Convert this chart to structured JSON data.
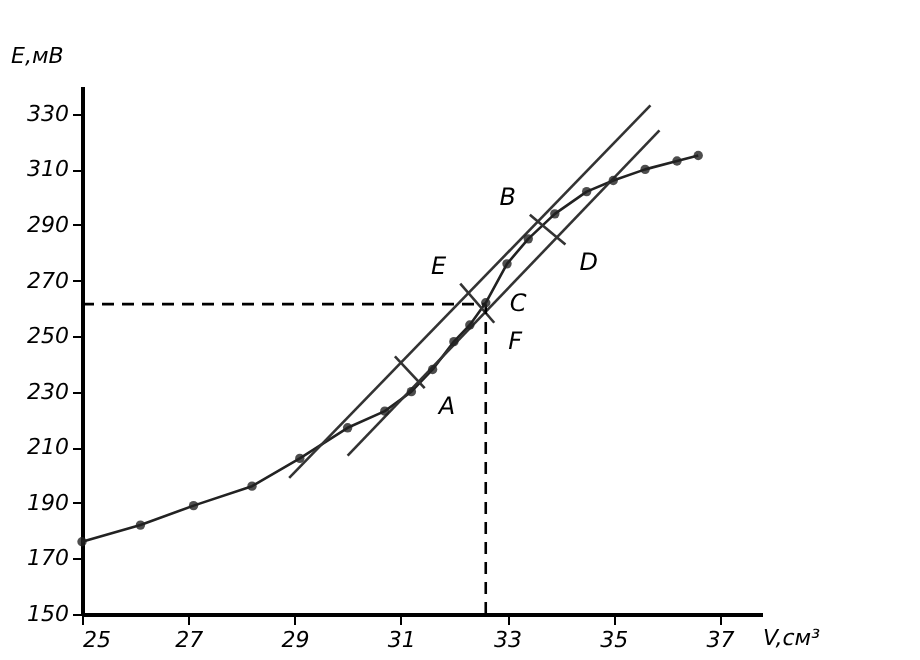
{
  "chart_data": {
    "type": "line",
    "xlabel": "V,см³",
    "ylabel": "E,мВ",
    "xlim": [
      25,
      37.8
    ],
    "ylim": [
      150,
      340
    ],
    "xticks": [
      25,
      27,
      29,
      31,
      33,
      35,
      37
    ],
    "yticks": [
      150,
      170,
      190,
      210,
      230,
      250,
      270,
      290,
      310,
      330
    ],
    "grid": false,
    "series": [
      {
        "color": "#222222",
        "marker": "circle",
        "line_style": "solid",
        "x": [
          25,
          26.1,
          27.1,
          28.2,
          29.1,
          30.0,
          30.7,
          31.2,
          31.6,
          32.0,
          32.3,
          32.6,
          33.0,
          33.4,
          33.9,
          34.5,
          35.0,
          35.6,
          36.2,
          36.6
        ],
        "values": [
          176,
          182,
          189,
          196,
          206,
          217,
          223,
          230,
          238,
          248,
          254,
          262,
          276,
          285,
          294,
          302,
          306,
          310,
          313,
          315
        ]
      },
      {
        "color": "#333333",
        "marker": "none",
        "line_style": "solid",
        "x": [
          28.9,
          35.7
        ],
        "values": [
          199,
          333
        ]
      },
      {
        "color": "#333333",
        "marker": "none",
        "line_style": "solid",
        "x": [
          30.0,
          35.87
        ],
        "values": [
          207,
          324
        ]
      },
      {
        "color": "#333333",
        "marker": "none",
        "line_style": "solid",
        "x": [
          30.89,
          31.45
        ],
        "values": [
          242.7,
          231.3
        ]
      },
      {
        "color": "#333333",
        "marker": "none",
        "line_style": "solid",
        "x": [
          33.43,
          34.1
        ],
        "values": [
          293.7,
          283
        ]
      },
      {
        "color": "#333333",
        "marker": "none",
        "line_style": "solid",
        "x": [
          32.12,
          32.76
        ],
        "values": [
          268.9,
          254.8
        ]
      },
      {
        "color": "#000000",
        "marker": "none",
        "line_style": "dashed",
        "x": [
          25,
          32.6
        ],
        "values": [
          261.5,
          261.5
        ]
      },
      {
        "color": "#000000",
        "marker": "none",
        "line_style": "dashed",
        "x": [
          32.6,
          32.6
        ],
        "values": [
          150,
          261.5
        ]
      }
    ],
    "annotations": [
      {
        "text": "A",
        "x": 31.45,
        "y": 231.3
      },
      {
        "text": "B",
        "x": 33.43,
        "y": 293.7
      },
      {
        "text": "C",
        "x": 32.6,
        "y": 262
      },
      {
        "text": "D",
        "x": 34.1,
        "y": 283
      },
      {
        "text": "E",
        "x": 32.12,
        "y": 268.9
      },
      {
        "text": "F",
        "x": 32.76,
        "y": 254.8
      }
    ]
  }
}
